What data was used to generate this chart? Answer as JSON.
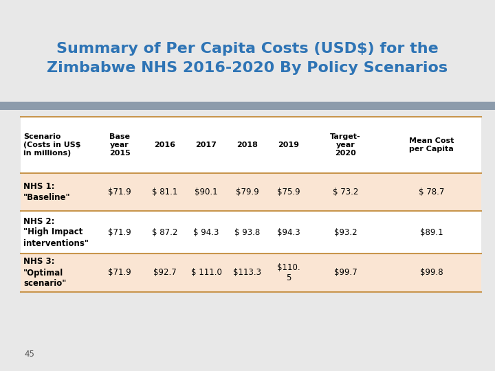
{
  "title": "Summary of Per Capita Costs (USD$) for the\nZimbabwe NHS 2016-2020 By Policy Scenarios",
  "title_color": "#2E74B5",
  "background_color": "#E8E8E8",
  "separator_color": "#8C9BAB",
  "header_row": [
    "Scenario\n(Costs in US$\nin millions)",
    "Base\nyear\n2015",
    "2016",
    "2017",
    "2018",
    "2019",
    "Target-\nyear\n2020",
    "Mean Cost\nper Capita"
  ],
  "rows": [
    {
      "label": "NHS 1:\n\"Baseline\"",
      "values": [
        "$71.9",
        "$ 81.1",
        "$90.1",
        "$79.9",
        "$75.9",
        "$ 73.2",
        "$ 78.7"
      ],
      "shaded": true
    },
    {
      "label": "NHS 2:\n\"High Impact\ninterventions\"",
      "values": [
        "$71.9",
        "$ 87.2",
        "$ 94.3",
        "$ 93.8",
        "$94.3",
        "$93.2",
        "$89.1"
      ],
      "shaded": false
    },
    {
      "label": "NHS 3:\n\"Optimal\nscenario\"",
      "values": [
        "$71.9",
        "$92.7",
        "$ 111.0",
        "$113.3",
        "$110.\n5",
        "$99.7",
        "$99.8"
      ],
      "shaded": true
    }
  ],
  "shaded_color": "#FAE5D3",
  "border_color": "#C8954C",
  "header_font_size": 8,
  "cell_font_size": 8.5,
  "page_number": "45",
  "title_font_size": 16
}
